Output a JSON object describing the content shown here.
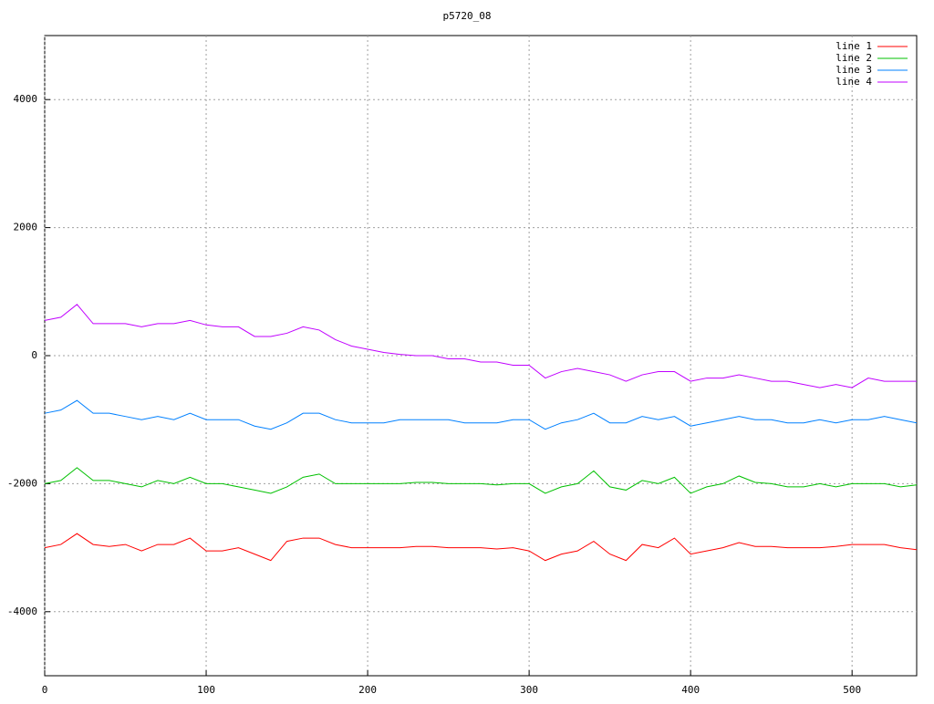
{
  "chart_data": {
    "type": "line",
    "title": "p5720_08",
    "xlim": [
      0,
      540
    ],
    "xticks": [
      0,
      100,
      200,
      300,
      400,
      500
    ],
    "ylim": [
      -5000,
      5000
    ],
    "yticks": [
      -4000,
      -2000,
      0,
      2000,
      4000
    ],
    "grid": true,
    "legend": "top-right",
    "x": [
      0,
      10,
      20,
      30,
      40,
      50,
      60,
      70,
      80,
      90,
      100,
      110,
      120,
      130,
      140,
      150,
      160,
      170,
      180,
      190,
      200,
      210,
      220,
      230,
      240,
      250,
      260,
      270,
      280,
      290,
      300,
      310,
      320,
      330,
      340,
      350,
      360,
      370,
      380,
      390,
      400,
      410,
      420,
      430,
      440,
      450,
      460,
      470,
      480,
      490,
      500,
      510,
      520,
      530,
      540
    ],
    "series": [
      {
        "name": "line 1",
        "color": "#ff0000",
        "values": [
          -3000,
          -2950,
          -2780,
          -2950,
          -2980,
          -2950,
          -3050,
          -2950,
          -2950,
          -2850,
          -3050,
          -3050,
          -3000,
          -3100,
          -3200,
          -2900,
          -2850,
          -2850,
          -2950,
          -3000,
          -3000,
          -3000,
          -3000,
          -2980,
          -2980,
          -3000,
          -3000,
          -3000,
          -3020,
          -3000,
          -3050,
          -3200,
          -3100,
          -3050,
          -2900,
          -3100,
          -3200,
          -2950,
          -3000,
          -2850,
          -3100,
          -3050,
          -3000,
          -2920,
          -2980,
          -2980,
          -3000,
          -3000,
          -3000,
          -2980,
          -2950,
          -2950,
          -2950,
          -3000,
          -3030
        ]
      },
      {
        "name": "line 2",
        "color": "#00c000",
        "values": [
          -2000,
          -1950,
          -1750,
          -1950,
          -1950,
          -2000,
          -2050,
          -1950,
          -2000,
          -1900,
          -2000,
          -2000,
          -2050,
          -2100,
          -2150,
          -2050,
          -1900,
          -1850,
          -2000,
          -2000,
          -2000,
          -2000,
          -2000,
          -1980,
          -1980,
          -2000,
          -2000,
          -2000,
          -2020,
          -2000,
          -2000,
          -2150,
          -2050,
          -2000,
          -1800,
          -2050,
          -2100,
          -1950,
          -2000,
          -1900,
          -2150,
          -2050,
          -2000,
          -1880,
          -1980,
          -2000,
          -2050,
          -2050,
          -2000,
          -2050,
          -2000,
          -2000,
          -2000,
          -2050,
          -2020
        ]
      },
      {
        "name": "line 3",
        "color": "#0080ff",
        "values": [
          -900,
          -850,
          -700,
          -900,
          -900,
          -950,
          -1000,
          -950,
          -1000,
          -900,
          -1000,
          -1000,
          -1000,
          -1100,
          -1150,
          -1050,
          -900,
          -900,
          -1000,
          -1050,
          -1050,
          -1050,
          -1000,
          -1000,
          -1000,
          -1000,
          -1050,
          -1050,
          -1050,
          -1000,
          -1000,
          -1150,
          -1050,
          -1000,
          -900,
          -1050,
          -1050,
          -950,
          -1000,
          -950,
          -1100,
          -1050,
          -1000,
          -950,
          -1000,
          -1000,
          -1050,
          -1050,
          -1000,
          -1050,
          -1000,
          -1000,
          -950,
          -1000,
          -1050
        ]
      },
      {
        "name": "line 4",
        "color": "#c000ff",
        "values": [
          550,
          600,
          800,
          500,
          500,
          500,
          450,
          500,
          500,
          550,
          480,
          450,
          450,
          300,
          300,
          350,
          450,
          400,
          250,
          150,
          100,
          50,
          20,
          0,
          0,
          -50,
          -50,
          -100,
          -100,
          -150,
          -150,
          -350,
          -250,
          -200,
          -250,
          -300,
          -400,
          -300,
          -250,
          -250,
          -400,
          -350,
          -350,
          -300,
          -350,
          -400,
          -400,
          -450,
          -500,
          -450,
          -500,
          -350,
          -400,
          -400,
          -400
        ]
      }
    ]
  }
}
